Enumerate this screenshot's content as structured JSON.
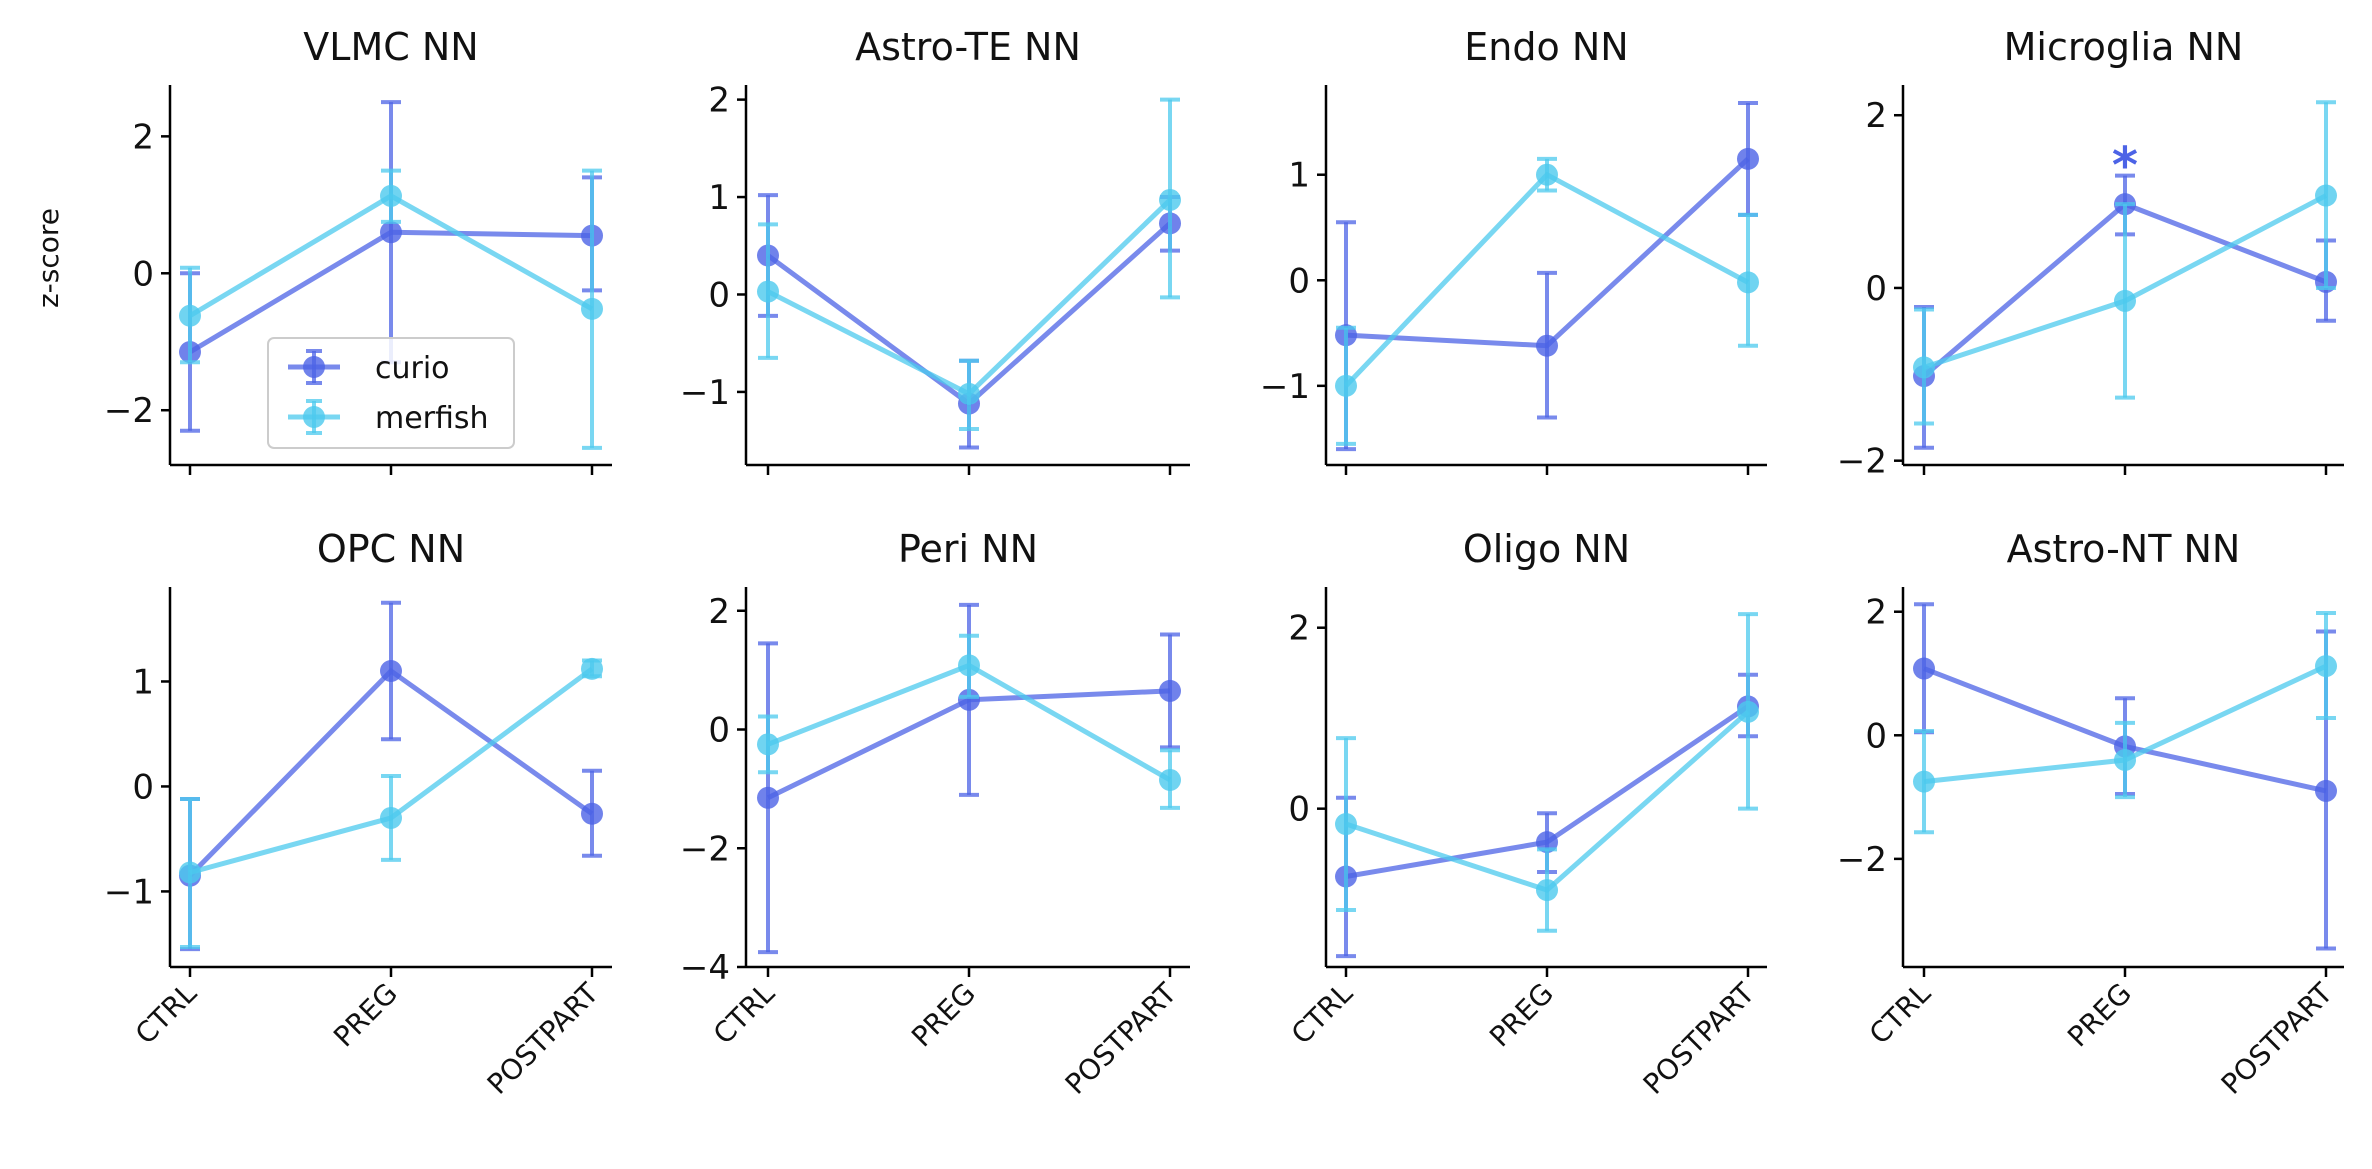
{
  "chart_data": {
    "type": "line",
    "ylabel": "z-score",
    "categories": [
      "CTRL",
      "PREG",
      "POSTPART"
    ],
    "legend": {
      "placement": "inside first panel, lower-center",
      "entries": [
        "curio",
        "merfish"
      ]
    },
    "colors": {
      "curio": "#4c63e6",
      "merfish": "#4cc9ee"
    },
    "panels": [
      {
        "title": "VLMC NN",
        "ylim": [
          -2.8,
          2.75
        ],
        "yticks": [
          -2,
          0,
          2
        ],
        "yticklabels": [
          "−2",
          "0",
          "2"
        ],
        "series": [
          {
            "name": "curio",
            "values": [
              -1.15,
              0.6,
              0.55
            ],
            "lower": [
              -2.3,
              -1.3,
              -0.25
            ],
            "upper": [
              0.0,
              2.5,
              1.4
            ]
          },
          {
            "name": "merfish",
            "values": [
              -0.62,
              1.13,
              -0.52
            ],
            "lower": [
              -1.3,
              0.75,
              -2.55
            ],
            "upper": [
              0.08,
              1.5,
              1.5
            ]
          }
        ]
      },
      {
        "title": "Astro-TE NN",
        "ylim": [
          -1.75,
          2.15
        ],
        "yticks": [
          -1,
          0,
          1,
          2
        ],
        "yticklabels": [
          "−1",
          "0",
          "1",
          "2"
        ],
        "series": [
          {
            "name": "curio",
            "values": [
              0.4,
              -1.12,
              0.73
            ],
            "lower": [
              -0.22,
              -1.57,
              0.45
            ],
            "upper": [
              1.02,
              -0.68,
              1.0
            ]
          },
          {
            "name": "merfish",
            "values": [
              0.03,
              -1.02,
              0.97
            ],
            "lower": [
              -0.65,
              -1.38,
              -0.03
            ],
            "upper": [
              0.72,
              -0.68,
              2.0
            ]
          }
        ]
      },
      {
        "title": "Endo NN",
        "ylim": [
          -1.75,
          1.85
        ],
        "yticks": [
          -1,
          0,
          1
        ],
        "yticklabels": [
          "−1",
          "0",
          "1"
        ],
        "series": [
          {
            "name": "curio",
            "values": [
              -0.52,
              -0.62,
              1.15
            ],
            "lower": [
              -1.6,
              -1.3,
              0.62
            ],
            "upper": [
              0.55,
              0.07,
              1.68
            ]
          },
          {
            "name": "merfish",
            "values": [
              -1.0,
              1.0,
              -0.02
            ],
            "lower": [
              -1.55,
              0.85,
              -0.62
            ],
            "upper": [
              -0.45,
              1.15,
              0.62
            ]
          }
        ]
      },
      {
        "title": "Microglia NN",
        "ylim": [
          -2.05,
          2.35
        ],
        "yticks": [
          -2,
          0,
          2
        ],
        "yticklabels": [
          "−2",
          "0",
          "2"
        ],
        "annotation": {
          "text": "*",
          "x": 0.5,
          "y": 1.5
        },
        "series": [
          {
            "name": "curio",
            "values": [
              -1.02,
              0.97,
              0.07
            ],
            "lower": [
              -1.85,
              0.62,
              -0.38
            ],
            "upper": [
              -0.22,
              1.3,
              0.55
            ]
          },
          {
            "name": "merfish",
            "values": [
              -0.92,
              -0.15,
              1.07
            ],
            "lower": [
              -1.57,
              -1.27,
              0.0
            ],
            "upper": [
              -0.25,
              0.97,
              2.15
            ]
          }
        ]
      },
      {
        "title": "OPC NN",
        "ylim": [
          -1.72,
          1.9
        ],
        "yticks": [
          -1,
          0,
          1
        ],
        "yticklabels": [
          "−1",
          "0",
          "1"
        ],
        "series": [
          {
            "name": "curio",
            "values": [
              -0.85,
              1.1,
              -0.26
            ],
            "lower": [
              -1.55,
              0.45,
              -0.66
            ],
            "upper": [
              -0.12,
              1.75,
              0.15
            ]
          },
          {
            "name": "merfish",
            "values": [
              -0.82,
              -0.3,
              1.12
            ],
            "lower": [
              -1.53,
              -0.7,
              1.05
            ],
            "upper": [
              -0.12,
              0.1,
              1.2
            ]
          }
        ]
      },
      {
        "title": "Peri NN",
        "ylim": [
          -4.0,
          2.4
        ],
        "yticks": [
          -4,
          -2,
          0,
          2
        ],
        "yticklabels": [
          "−4",
          "−2",
          "0",
          "2"
        ],
        "series": [
          {
            "name": "curio",
            "values": [
              -1.15,
              0.5,
              0.65
            ],
            "lower": [
              -3.75,
              -1.1,
              -0.3
            ],
            "upper": [
              1.45,
              2.1,
              1.6
            ]
          },
          {
            "name": "merfish",
            "values": [
              -0.25,
              1.08,
              -0.85
            ],
            "lower": [
              -0.72,
              0.55,
              -1.32
            ],
            "upper": [
              0.22,
              1.58,
              -0.35
            ]
          }
        ]
      },
      {
        "title": "Oligo NN",
        "ylim": [
          -1.75,
          2.45
        ],
        "yticks": [
          0,
          2
        ],
        "yticklabels": [
          "0",
          "2"
        ],
        "series": [
          {
            "name": "curio",
            "values": [
              -0.75,
              -0.37,
              1.13
            ],
            "lower": [
              -1.63,
              -0.7,
              0.8
            ],
            "upper": [
              0.12,
              -0.05,
              1.48
            ]
          },
          {
            "name": "merfish",
            "values": [
              -0.17,
              -0.9,
              1.07
            ],
            "lower": [
              -1.12,
              -1.35,
              0.0
            ],
            "upper": [
              0.78,
              -0.45,
              2.15
            ]
          }
        ]
      },
      {
        "title": "Astro-NT NN",
        "ylim": [
          -3.75,
          2.4
        ],
        "yticks": [
          -2,
          0,
          2
        ],
        "yticklabels": [
          "−2",
          "0",
          "2"
        ],
        "series": [
          {
            "name": "curio",
            "values": [
              1.08,
              -0.18,
              -0.9
            ],
            "lower": [
              0.05,
              -0.95,
              -3.45
            ],
            "upper": [
              2.12,
              0.6,
              1.68
            ]
          },
          {
            "name": "merfish",
            "values": [
              -0.75,
              -0.4,
              1.12
            ],
            "lower": [
              -1.57,
              -1.0,
              0.28
            ],
            "upper": [
              0.07,
              0.2,
              1.98
            ]
          }
        ]
      }
    ]
  }
}
